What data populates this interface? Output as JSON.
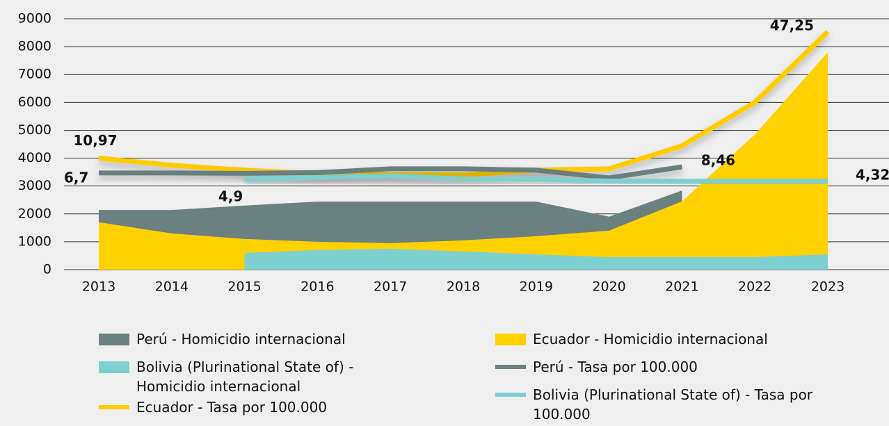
{
  "chart_data": {
    "type": "area",
    "categories": [
      "2013",
      "2014",
      "2015",
      "2016",
      "2017",
      "2018",
      "2019",
      "2020",
      "2021",
      "2022",
      "2023"
    ],
    "ylim": [
      0,
      9000
    ],
    "yticks": [
      0,
      1000,
      2000,
      3000,
      4000,
      5000,
      6000,
      7000,
      8000,
      9000
    ],
    "y2lim": [
      -21.06,
      51.0
    ],
    "grid": true,
    "series": [
      {
        "name": "Perú - Homicidio internacional",
        "type": "area",
        "color": "#6b8080",
        "values": [
          2140,
          2140,
          2300,
          2440,
          2440,
          2440,
          2440,
          1900,
          2840,
          null,
          null
        ]
      },
      {
        "name": "Ecuador - Homicidio internacional",
        "type": "area",
        "color": "#ffd100",
        "values": [
          1700,
          1300,
          1100,
          1000,
          950,
          1050,
          1200,
          1400,
          2450,
          4850,
          7800
        ]
      },
      {
        "name": "Bolivia (Plurinational State of) - Homicidio internacional",
        "type": "area",
        "color": "#7ecfcf",
        "values": [
          null,
          null,
          600,
          700,
          750,
          650,
          550,
          450,
          450,
          450,
          550
        ]
      },
      {
        "name": "Ecuador - Tasa por 100.000",
        "type": "line",
        "axis": "y2",
        "color": "#ffcc00",
        "values": [
          10.97,
          8.9,
          7.5,
          6.5,
          6.3,
          6.1,
          7.5,
          7.9,
          14.5,
          27,
          47.25
        ],
        "value_labels": [
          "10,97",
          null,
          null,
          null,
          null,
          null,
          null,
          null,
          null,
          null,
          "47,25"
        ]
      },
      {
        "name": "Perú - Tasa por 100.000",
        "type": "line",
        "axis": "y2",
        "color": "#6b8080",
        "values": [
          6.7,
          6.7,
          6.6,
          6.8,
          7.9,
          7.9,
          7.5,
          5.3,
          8.46,
          null,
          null
        ],
        "value_labels": [
          "6,7",
          null,
          null,
          null,
          null,
          null,
          null,
          null,
          "8,46",
          null,
          null
        ]
      },
      {
        "name": "Bolivia (Plurinational State of) - Tasa por 100.000",
        "type": "line",
        "axis": "y2",
        "color": "#7ecfcf",
        "values": [
          null,
          null,
          4.9,
          5.4,
          5.9,
          5.0,
          4.9,
          4.4,
          4.32,
          4.32,
          4.32
        ],
        "value_labels": [
          null,
          null,
          "4,9",
          null,
          null,
          null,
          null,
          null,
          null,
          null,
          "4,32"
        ]
      }
    ]
  }
}
